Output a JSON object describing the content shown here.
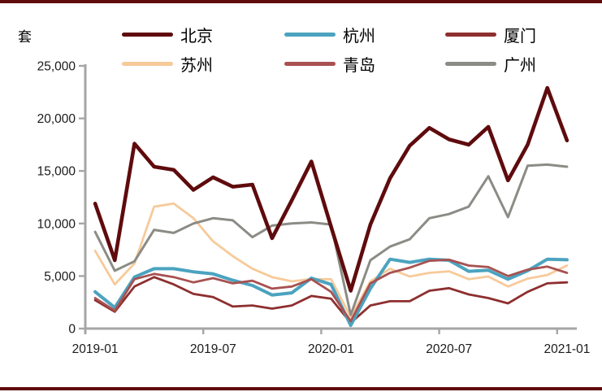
{
  "page": {
    "border_color": "#5F0B0D",
    "background": "#FFFFFF"
  },
  "chart_data": {
    "type": "line",
    "title": "",
    "unit_label": "套",
    "x": [
      "2019-01",
      "2019-02",
      "2019-03",
      "2019-04",
      "2019-05",
      "2019-06",
      "2019-07",
      "2019-08",
      "2019-09",
      "2019-10",
      "2019-11",
      "2019-12",
      "2020-01",
      "2020-02",
      "2020-03",
      "2020-04",
      "2020-05",
      "2020-06",
      "2020-07",
      "2020-08",
      "2020-09",
      "2020-10",
      "2020-11",
      "2020-12",
      "2021-01"
    ],
    "x_tick_labels": [
      "2019-01",
      "2019-07",
      "2020-01",
      "2020-07",
      "2021-01"
    ],
    "y_ticks": [
      {
        "value": 0,
        "label": "0"
      },
      {
        "value": 5000,
        "label": "5,000"
      },
      {
        "value": 10000,
        "label": "10,000"
      },
      {
        "value": 15000,
        "label": "15,000"
      },
      {
        "value": 20000,
        "label": "20,000"
      },
      {
        "value": 25000,
        "label": "25,000"
      }
    ],
    "ylim": [
      0,
      25000
    ],
    "grid": false,
    "legend_position": "top",
    "axis_color": "#A6A6A6",
    "label_color": "#1a1a1a",
    "series": [
      {
        "name": "北京",
        "slug": "beijing",
        "color": "#5F0B0D",
        "width": 4.6,
        "values": [
          11900,
          6500,
          17600,
          15400,
          15100,
          13200,
          14400,
          13500,
          13700,
          8600,
          12200,
          15900,
          9700,
          3600,
          9900,
          14300,
          17400,
          19100,
          18000,
          17500,
          19200,
          14100,
          17500,
          22900,
          17900
        ]
      },
      {
        "name": "杭州",
        "slug": "hangzhou",
        "color": "#4BA3BF",
        "width": 4.0,
        "values": [
          3500,
          2000,
          4900,
          5700,
          5700,
          5400,
          5200,
          4600,
          4100,
          3200,
          3400,
          4800,
          4200,
          300,
          3800,
          6600,
          6300,
          6600,
          6500,
          5450,
          5550,
          4700,
          5500,
          6600,
          6550
        ]
      },
      {
        "name": "厦门",
        "slug": "xiamen",
        "color": "#8E2F2F",
        "width": 2.8,
        "values": [
          2700,
          1600,
          4000,
          4900,
          4200,
          3300,
          3000,
          2100,
          2200,
          1900,
          2200,
          3100,
          2850,
          550,
          2200,
          2600,
          2600,
          3600,
          3850,
          3250,
          2900,
          2400,
          3500,
          4300,
          4400
        ]
      },
      {
        "name": "苏州",
        "slug": "suzhou",
        "color": "#F7CA9A",
        "width": 2.8,
        "values": [
          7400,
          4200,
          6200,
          11600,
          11900,
          10500,
          8300,
          6900,
          5700,
          4900,
          4500,
          4700,
          4700,
          1100,
          4500,
          5700,
          4950,
          5300,
          5450,
          4700,
          4950,
          4000,
          4750,
          5100,
          6000
        ]
      },
      {
        "name": "青岛",
        "slug": "qingdao",
        "color": "#A85151",
        "width": 2.8,
        "values": [
          2900,
          1700,
          4700,
          5200,
          4900,
          4400,
          4800,
          4300,
          4550,
          3800,
          4000,
          4700,
          3500,
          700,
          4300,
          5300,
          5800,
          6450,
          6550,
          6000,
          5850,
          5000,
          5600,
          5900,
          5300
        ]
      },
      {
        "name": "广州",
        "slug": "guangzhou",
        "color": "#8C8C86",
        "width": 3.0,
        "values": [
          9200,
          5500,
          6400,
          9400,
          9100,
          10000,
          10500,
          10300,
          8700,
          9800,
          10000,
          10100,
          9900,
          1300,
          6500,
          7800,
          8500,
          10500,
          10900,
          11600,
          14500,
          10600,
          15500,
          15600,
          15400
        ]
      }
    ],
    "draw_order": [
      3,
      2,
      1,
      4,
      5,
      0
    ]
  }
}
